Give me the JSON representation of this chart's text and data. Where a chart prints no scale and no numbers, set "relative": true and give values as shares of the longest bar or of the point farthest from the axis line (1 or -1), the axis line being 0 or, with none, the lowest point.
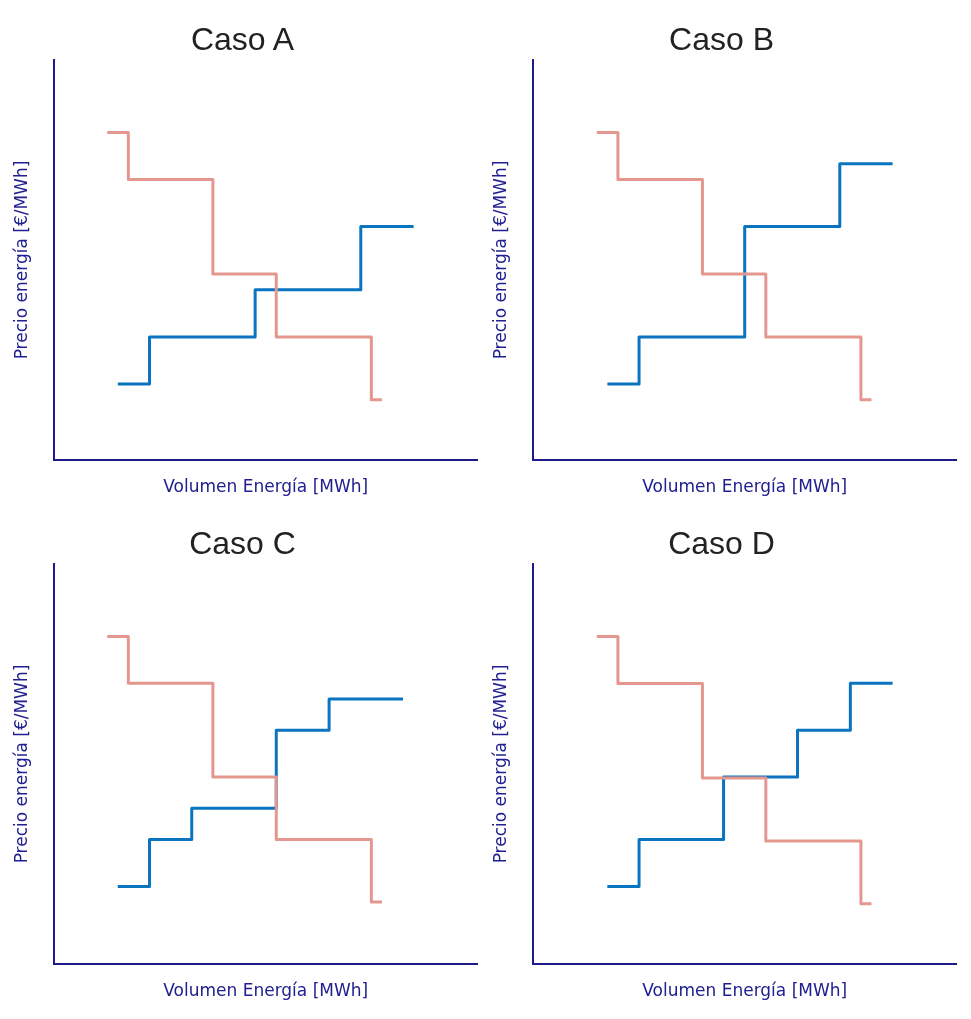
{
  "chart_data": [
    {
      "type": "step",
      "title": "Caso A",
      "xlabel": "Volumen Energía [MWh]",
      "ylabel": "Precio energía [€/MWh]",
      "relative": true,
      "marker": "none",
      "categories": [
        null,
        null,
        null,
        null,
        null,
        null,
        null,
        null,
        null,
        null,
        null,
        null,
        null,
        null,
        null,
        null,
        null,
        null,
        null,
        null,
        null,
        null,
        null,
        null,
        null,
        null,
        null,
        null,
        null,
        null,
        null,
        null,
        null,
        null,
        null,
        null,
        null,
        null,
        null,
        null,
        null
      ],
      "series": [
        {
          "color": "#e4978f",
          "values": [
            null,
            null,
            null,
            null,
            null,
            1.0,
            1.0,
            1.0,
            0.856,
            0.856,
            0.856,
            0.856,
            0.856,
            0.856,
            0.856,
            0.856,
            0.567,
            0.567,
            0.567,
            0.567,
            0.567,
            0.567,
            0.375,
            0.375,
            0.375,
            0.375,
            0.375,
            0.375,
            0.375,
            0.375,
            0.375,
            0.183,
            null,
            null,
            null,
            null,
            null,
            null,
            null,
            null,
            null
          ]
        },
        {
          "color": "#0a74c0",
          "values": [
            null,
            null,
            null,
            null,
            null,
            null,
            0.231,
            0.231,
            0.231,
            0.231,
            0.375,
            0.375,
            0.375,
            0.375,
            0.375,
            0.375,
            0.375,
            0.375,
            0.375,
            0.375,
            0.519,
            0.519,
            0.519,
            0.519,
            0.519,
            0.519,
            0.519,
            0.519,
            0.519,
            0.519,
            0.712,
            0.712,
            0.712,
            0.712,
            0.712,
            null,
            null,
            null,
            null,
            null,
            null
          ]
        }
      ]
    },
    {
      "type": "step",
      "title": "Caso B",
      "xlabel": "Volumen Energía [MWh]",
      "ylabel": "Precio energía [€/MWh]",
      "relative": true,
      "marker": "none",
      "categories": [
        null,
        null,
        null,
        null,
        null,
        null,
        null,
        null,
        null,
        null,
        null,
        null,
        null,
        null,
        null,
        null,
        null,
        null,
        null,
        null,
        null,
        null,
        null,
        null,
        null,
        null,
        null,
        null,
        null,
        null,
        null,
        null,
        null,
        null,
        null,
        null,
        null,
        null,
        null,
        null,
        null
      ],
      "series": [
        {
          "color": "#e4978f",
          "values": [
            null,
            null,
            null,
            null,
            null,
            null,
            1.0,
            1.0,
            1.0,
            0.856,
            0.856,
            0.856,
            0.856,
            0.856,
            0.856,
            0.856,
            0.856,
            0.567,
            0.567,
            0.567,
            0.567,
            0.567,
            0.567,
            0.375,
            0.375,
            0.375,
            0.375,
            0.375,
            0.375,
            0.375,
            0.375,
            0.375,
            0.183,
            null,
            null,
            null,
            null,
            null,
            null,
            null,
            null
          ]
        },
        {
          "color": "#0a74c0",
          "values": [
            null,
            null,
            null,
            null,
            null,
            null,
            null,
            0.231,
            0.231,
            0.231,
            0.231,
            0.375,
            0.375,
            0.375,
            0.375,
            0.375,
            0.375,
            0.375,
            0.375,
            0.375,
            0.375,
            0.712,
            0.712,
            0.712,
            0.712,
            0.712,
            0.712,
            0.712,
            0.712,
            0.712,
            0.904,
            0.904,
            0.904,
            0.904,
            0.904,
            null,
            null,
            null,
            null,
            null,
            null
          ]
        }
      ]
    },
    {
      "type": "step",
      "title": "Caso C",
      "xlabel": "Volumen Energía [MWh]",
      "ylabel": "Precio energía [€/MWh]",
      "relative": true,
      "marker": "none",
      "categories": [
        null,
        null,
        null,
        null,
        null,
        null,
        null,
        null,
        null,
        null,
        null,
        null,
        null,
        null,
        null,
        null,
        null,
        null,
        null,
        null,
        null,
        null,
        null,
        null,
        null,
        null,
        null,
        null,
        null,
        null,
        null,
        null,
        null,
        null,
        null,
        null,
        null,
        null,
        null,
        null,
        null
      ],
      "series": [
        {
          "color": "#e4978f",
          "values": [
            null,
            null,
            null,
            null,
            null,
            1.0,
            1.0,
            1.0,
            0.857,
            0.857,
            0.857,
            0.857,
            0.857,
            0.857,
            0.857,
            0.857,
            0.57,
            0.57,
            0.57,
            0.57,
            0.57,
            0.57,
            0.379,
            0.379,
            0.379,
            0.379,
            0.379,
            0.379,
            0.379,
            0.379,
            0.379,
            0.188,
            null,
            null,
            null,
            null,
            null,
            null,
            null,
            null,
            null
          ]
        },
        {
          "color": "#0a74c0",
          "values": [
            null,
            null,
            null,
            null,
            null,
            null,
            0.236,
            0.236,
            0.236,
            0.236,
            0.379,
            0.379,
            0.379,
            0.379,
            0.475,
            0.475,
            0.475,
            0.475,
            0.475,
            0.475,
            0.475,
            0.475,
            0.713,
            0.713,
            0.713,
            0.713,
            0.713,
            0.809,
            0.809,
            0.809,
            0.809,
            0.809,
            0.809,
            0.809,
            null,
            null,
            null,
            null,
            null,
            null,
            null
          ]
        }
      ]
    },
    {
      "type": "step",
      "title": "Caso D",
      "xlabel": "Volumen Energía [MWh]",
      "ylabel": "Precio energía [€/MWh]",
      "relative": true,
      "marker": "none",
      "categories": [
        null,
        null,
        null,
        null,
        null,
        null,
        null,
        null,
        null,
        null,
        null,
        null,
        null,
        null,
        null,
        null,
        null,
        null,
        null,
        null,
        null,
        null,
        null,
        null,
        null,
        null,
        null,
        null,
        null,
        null,
        null,
        null,
        null,
        null,
        null,
        null,
        null,
        null,
        null,
        null,
        null
      ],
      "series": [
        {
          "color": "#e4978f",
          "values": [
            null,
            null,
            null,
            null,
            null,
            null,
            1.0,
            1.0,
            1.0,
            0.856,
            0.856,
            0.856,
            0.856,
            0.856,
            0.856,
            0.856,
            0.856,
            0.567,
            0.567,
            0.567,
            0.567,
            0.567,
            0.567,
            0.375,
            0.375,
            0.375,
            0.375,
            0.375,
            0.375,
            0.375,
            0.375,
            0.375,
            0.183,
            null,
            null,
            null,
            null,
            null,
            null,
            null,
            null
          ]
        },
        {
          "color": "#0a74c0",
          "values": [
            null,
            null,
            null,
            null,
            null,
            null,
            null,
            0.236,
            0.236,
            0.236,
            0.236,
            0.379,
            0.379,
            0.379,
            0.379,
            0.379,
            0.379,
            0.379,
            0.379,
            0.57,
            0.57,
            0.57,
            0.57,
            0.57,
            0.57,
            0.57,
            0.713,
            0.713,
            0.713,
            0.713,
            0.713,
            0.857,
            0.857,
            0.857,
            0.857,
            null,
            null,
            null,
            null,
            null,
            null
          ]
        }
      ]
    }
  ]
}
